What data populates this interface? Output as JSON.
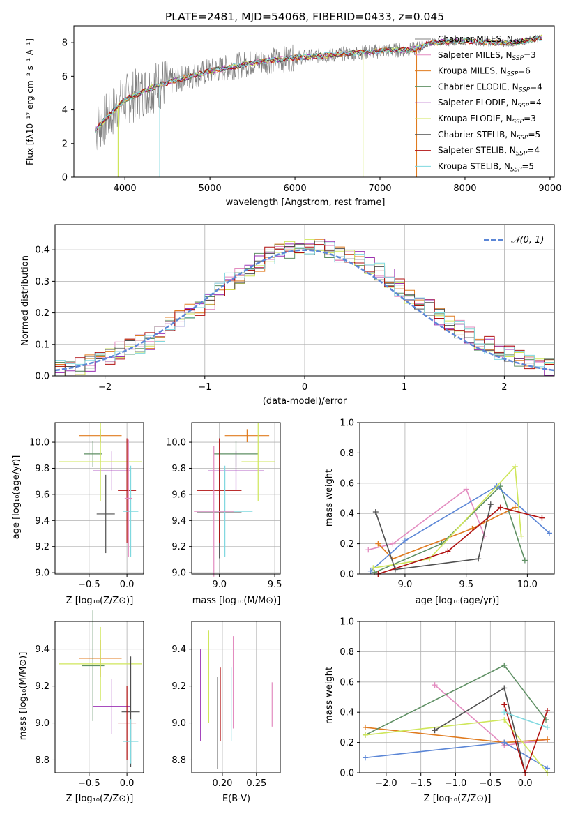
{
  "figure_title": "PLATE=2481, MJD=54068, FIBERID=0433, z=0.045",
  "colors": [
    "#808080",
    "#e38cc0",
    "#e07b1f",
    "#5e8f63",
    "#9b32b5",
    "#cfe65a",
    "#4f4f4f",
    "#b01010",
    "#7fd8df"
  ],
  "accent_blue": "#5b86d6",
  "panels": {
    "spectrum": {
      "xlabel": "wavelength [Angstrom, rest frame]",
      "ylabel": "Flux [fλ10⁻¹⁷ erg cm⁻² s⁻¹ A⁻¹]",
      "xticks": [
        "4000",
        "5000",
        "6000",
        "7000",
        "8000",
        "9000"
      ],
      "yticks": [
        "0",
        "2",
        "4",
        "6",
        "8"
      ],
      "legend": [
        "Chabrier MILES, N_SSP=4",
        "Salpeter MILES, N_SSP=3",
        "Kroupa MILES, N_SSP=6",
        "Chabrier ELODIE, N_SSP=4",
        "Salpeter ELODIE, N_SSP=4",
        "Kroupa ELODIE, N_SSP=3",
        "Chabrier STELIB, N_SSP=5",
        "Salpeter STELIB, N_SSP=4",
        "Kroupa STELIB, N_SSP=5"
      ]
    },
    "residual": {
      "xlabel": "(data-model)/error",
      "ylabel": "Normed distribution",
      "legend": "𝒩(0, 1)",
      "xticks": [
        "−2",
        "−1",
        "0",
        "1",
        "2"
      ],
      "yticks": [
        "0.0",
        "0.1",
        "0.2",
        "0.3",
        "0.4"
      ]
    },
    "age_Z": {
      "xlabel": "Z [log₁₀(Z/Z⊙)]",
      "ylabel": "age  [log₁₀(age/yr)]",
      "xticks": [
        "−0.5",
        "0.0"
      ],
      "yticks": [
        "9.0",
        "9.2",
        "9.4",
        "9.6",
        "9.8",
        "10.0"
      ]
    },
    "age_mass": {
      "xlabel": "mass [log₁₀(M/M⊙)]",
      "xticks": [
        "9.0",
        "9.5"
      ],
      "yticks": [
        "9.0",
        "9.2",
        "9.4",
        "9.6",
        "9.8",
        "10.0"
      ]
    },
    "weight_age": {
      "xlabel": "age  [log₁₀(age/yr)]",
      "ylabel": "mass weight",
      "xticks": [
        "9.0",
        "9.5",
        "10.0"
      ],
      "yticks": [
        "0.0",
        "0.2",
        "0.4",
        "0.6",
        "0.8",
        "1.0"
      ]
    },
    "mass_Z": {
      "xlabel": "Z [log₁₀(Z/Z⊙)]",
      "ylabel": "mass [log₁₀(M/M⊙)]",
      "xticks": [
        "−0.5",
        "0.0"
      ],
      "yticks": [
        "8.8",
        "9.0",
        "9.2",
        "9.4"
      ]
    },
    "mass_ebv": {
      "xlabel": "E(B-V)",
      "xticks": [
        "0.20",
        "0.25"
      ],
      "yticks": [
        "8.8",
        "9.0",
        "9.2",
        "9.4"
      ]
    },
    "weight_Z": {
      "xlabel": "Z [log₁₀(Z/Z⊙)]",
      "ylabel": "mass weight",
      "xticks": [
        "−2.0",
        "−1.5",
        "−1.0",
        "−0.5",
        "0.0"
      ],
      "yticks": [
        "0.0",
        "0.2",
        "0.4",
        "0.6",
        "0.8",
        "1.0"
      ]
    }
  },
  "chart_data": [
    {
      "type": "line",
      "title": "PLATE=2481, MJD=54068, FIBERID=0433, z=0.045",
      "xlabel": "wavelength [Angstrom, rest frame]",
      "xlim": [
        3400,
        9050
      ],
      "ylim": [
        0,
        9
      ],
      "data_series_note": "observed spectrum (grey) with nine overlaid model fits",
      "anchor_points_x": [
        3650,
        3800,
        4000,
        4400,
        5000,
        5500,
        6000,
        6500,
        7000,
        7400,
        7600,
        8000,
        8300,
        8600,
        8900
      ],
      "anchor_points_y": [
        2.8,
        3.6,
        4.6,
        5.5,
        6.3,
        6.8,
        7.1,
        7.3,
        7.5,
        7.6,
        8.0,
        8.1,
        8.0,
        8.0,
        8.3
      ]
    },
    {
      "type": "bar",
      "xlabel": "(data-model)/error",
      "ylabel": "Normed distribution",
      "xlim": [
        -2.5,
        2.5
      ],
      "ylim": [
        0,
        0.48
      ],
      "bin_width": 0.1,
      "series": [
        {
          "values": [
            0.02,
            0.02,
            0.03,
            0.04,
            0.05,
            0.06,
            0.08,
            0.09,
            0.1,
            0.11,
            0.13,
            0.16,
            0.18,
            0.2,
            0.22,
            0.24,
            0.27,
            0.3,
            0.32,
            0.34,
            0.36,
            0.38,
            0.39,
            0.4,
            0.41,
            0.41,
            0.41,
            0.4,
            0.39,
            0.38,
            0.37,
            0.35,
            0.33,
            0.31,
            0.28,
            0.26,
            0.24,
            0.22,
            0.19,
            0.17,
            0.15,
            0.13,
            0.11,
            0.1,
            0.08,
            0.07,
            0.06,
            0.05,
            0.04,
            0.03
          ]
        }
      ],
      "reference_curve": {
        "name": "𝒩(0, 1)",
        "mean": 0,
        "sigma": 1
      }
    },
    {
      "type": "scatter",
      "xlabel": "Z [log₁₀(Z/Z⊙)]",
      "ylabel": "age  [log₁₀(age/yr)]",
      "xlim": [
        -0.95,
        0.22
      ],
      "ylim": [
        8.99,
        10.15
      ],
      "points": [
        {
          "x": -0.35,
          "y": 10.05,
          "xerr": 0.28,
          "yerr": 0.05
        },
        {
          "x": -0.45,
          "y": 9.91,
          "xerr": 0.12,
          "yerr": 0.1
        },
        {
          "x": -0.2,
          "y": 9.78,
          "xerr": 0.25,
          "yerr": 0.15
        },
        {
          "x": -0.35,
          "y": 9.85,
          "xerr": 0.55,
          "yerr": 0.3
        },
        {
          "x": -0.28,
          "y": 9.45,
          "xerr": 0.12,
          "yerr": 0.3
        },
        {
          "x": 0.0,
          "y": 9.63,
          "xerr": 0.12,
          "yerr": 0.4
        },
        {
          "x": 0.05,
          "y": 9.47,
          "xerr": 0.1,
          "yerr": 0.35
        },
        {
          "x": 0.02,
          "y": 9.57,
          "xerr": 0.05,
          "yerr": 0.45
        }
      ]
    },
    {
      "type": "scatter",
      "xlabel": "mass [log₁₀(M/M⊙)]",
      "xlim": [
        8.75,
        9.55
      ],
      "ylim": [
        8.99,
        10.15
      ],
      "points": [
        {
          "x": 9.25,
          "y": 10.05,
          "xerr": 0.2,
          "yerr": 0.05
        },
        {
          "x": 9.15,
          "y": 9.91,
          "xerr": 0.2,
          "yerr": 0.1
        },
        {
          "x": 9.15,
          "y": 9.78,
          "xerr": 0.25,
          "yerr": 0.15
        },
        {
          "x": 9.35,
          "y": 9.85,
          "xerr": 0.15,
          "yerr": 0.3
        },
        {
          "x": 9.0,
          "y": 9.46,
          "xerr": 0.2,
          "yerr": 0.35
        },
        {
          "x": 9.0,
          "y": 9.63,
          "xerr": 0.2,
          "yerr": 0.4
        },
        {
          "x": 9.05,
          "y": 9.47,
          "xerr": 0.25,
          "yerr": 0.35
        },
        {
          "x": 8.95,
          "y": 9.47,
          "xerr": 0.18,
          "yerr": 0.5
        }
      ]
    },
    {
      "type": "line",
      "xlabel": "age  [log₁₀(age/yr)]",
      "ylabel": "mass weight",
      "xlim": [
        8.63,
        10.22
      ],
      "ylim": [
        0,
        1
      ],
      "series": [
        {
          "x": [
            8.7,
            8.9,
            9.5,
            9.65
          ],
          "y": [
            0.16,
            0.2,
            0.56,
            0.25
          ]
        },
        {
          "x": [
            8.78,
            8.9,
            9.55,
            9.9
          ],
          "y": [
            0.2,
            0.1,
            0.3,
            0.44
          ]
        },
        {
          "x": [
            8.75,
            9.3,
            9.78,
            9.98
          ],
          "y": [
            0.01,
            0.2,
            0.58,
            0.09
          ]
        },
        {
          "x": [
            8.72,
            9.0,
            9.75,
            10.18
          ],
          "y": [
            0.02,
            0.22,
            0.58,
            0.27
          ]
        },
        {
          "x": [
            8.74,
            9.2,
            9.9,
            9.95
          ],
          "y": [
            0.04,
            0.1,
            0.71,
            0.25
          ]
        },
        {
          "x": [
            8.76,
            8.92,
            9.6,
            9.7
          ],
          "y": [
            0.41,
            0.03,
            0.1,
            0.46
          ]
        },
        {
          "x": [
            8.78,
            9.35,
            9.78,
            10.12
          ],
          "y": [
            0.0,
            0.15,
            0.44,
            0.37
          ]
        }
      ]
    },
    {
      "type": "scatter",
      "xlabel": "Z [log₁₀(Z/Z⊙)]",
      "ylabel": "mass [log₁₀(M/M⊙)]",
      "xlim": [
        -0.95,
        0.22
      ],
      "ylim": [
        8.73,
        9.55
      ],
      "points": [
        {
          "x": -0.35,
          "y": 9.35,
          "xerr": 0.28,
          "yerr": 0.1
        },
        {
          "x": -0.45,
          "y": 9.31,
          "xerr": 0.15,
          "yerr": 0.3
        },
        {
          "x": -0.2,
          "y": 9.09,
          "xerr": 0.25,
          "yerr": 0.15
        },
        {
          "x": -0.35,
          "y": 9.32,
          "xerr": 0.55,
          "yerr": 0.2
        },
        {
          "x": 0.05,
          "y": 9.06,
          "xerr": 0.12,
          "yerr": 0.3
        },
        {
          "x": 0.0,
          "y": 9.0,
          "xerr": 0.12,
          "yerr": 0.2
        },
        {
          "x": 0.05,
          "y": 8.9,
          "xerr": 0.1,
          "yerr": 0.12
        }
      ]
    },
    {
      "type": "scatter",
      "xlabel": "E(B-V)",
      "xlim": [
        0.155,
        0.285
      ],
      "ylim": [
        8.73,
        9.55
      ],
      "points": [
        {
          "x": 0.168,
          "y": 9.15,
          "yerr": 0.25
        },
        {
          "x": 0.18,
          "y": 9.25,
          "yerr": 0.25
        },
        {
          "x": 0.193,
          "y": 9.0,
          "yerr": 0.25
        },
        {
          "x": 0.197,
          "y": 9.1,
          "yerr": 0.2
        },
        {
          "x": 0.213,
          "y": 9.1,
          "yerr": 0.2
        },
        {
          "x": 0.216,
          "y": 9.22,
          "yerr": 0.25
        },
        {
          "x": 0.273,
          "y": 9.1,
          "yerr": 0.12
        }
      ]
    },
    {
      "type": "line",
      "xlabel": "Z [log₁₀(Z/Z⊙)]",
      "ylabel": "mass weight",
      "xlim": [
        -2.38,
        0.42
      ],
      "ylim": [
        0,
        1
      ],
      "series": [
        {
          "x": [
            -1.3,
            -0.3,
            0.32
          ],
          "y": [
            0.58,
            0.18,
            0.22
          ]
        },
        {
          "x": [
            -2.3,
            -0.3,
            0.32
          ],
          "y": [
            0.3,
            0.2,
            0.22
          ]
        },
        {
          "x": [
            -2.3,
            -0.3,
            0.3
          ],
          "y": [
            0.25,
            0.71,
            0.35
          ]
        },
        {
          "x": [
            -2.3,
            -0.3,
            0.32
          ],
          "y": [
            0.1,
            0.2,
            0.03
          ]
        },
        {
          "x": [
            -2.3,
            -0.3,
            0.32
          ],
          "y": [
            0.25,
            0.35,
            0.0
          ]
        },
        {
          "x": [
            -1.3,
            -0.3,
            0.0
          ],
          "y": [
            0.28,
            0.56,
            0.0
          ]
        },
        {
          "x": [
            -0.3,
            0.0,
            0.32
          ],
          "y": [
            0.45,
            0.0,
            0.41
          ]
        },
        {
          "x": [
            -0.3,
            0.32
          ],
          "y": [
            0.4,
            0.3
          ]
        }
      ]
    }
  ]
}
